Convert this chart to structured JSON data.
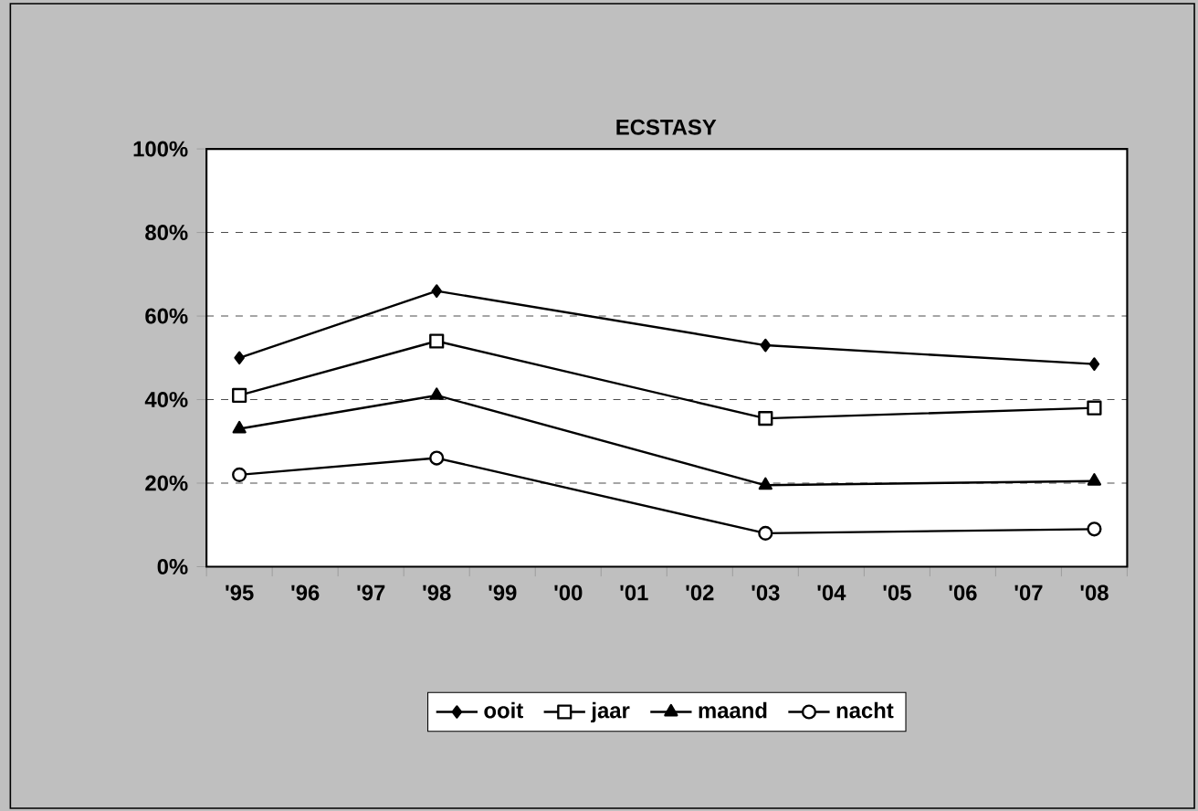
{
  "chart_data": {
    "type": "line",
    "title": "ECSTASY",
    "categories": [
      "'95",
      "'96",
      "'97",
      "'98",
      "'99",
      "'00",
      "'01",
      "'02",
      "'03",
      "'04",
      "'05",
      "'06",
      "'07",
      "'08"
    ],
    "series": [
      {
        "name": "ooit",
        "color": "#000000",
        "marker": "diamond",
        "values": [
          50,
          null,
          null,
          66,
          null,
          null,
          null,
          null,
          53,
          null,
          null,
          null,
          null,
          48.5
        ]
      },
      {
        "name": "jaar",
        "color": "#000000",
        "marker": "square",
        "values": [
          41,
          null,
          null,
          54,
          null,
          null,
          null,
          null,
          35.5,
          null,
          null,
          null,
          null,
          38
        ]
      },
      {
        "name": "maand",
        "color": "#000000",
        "marker": "triangle",
        "values": [
          33,
          null,
          null,
          41,
          null,
          null,
          null,
          null,
          19.5,
          null,
          null,
          null,
          null,
          20.5
        ]
      },
      {
        "name": "nacht",
        "color": "#000000",
        "marker": "circle",
        "values": [
          22,
          null,
          null,
          26,
          null,
          null,
          null,
          null,
          8,
          null,
          null,
          null,
          null,
          9
        ]
      }
    ],
    "ylim": [
      0,
      100
    ],
    "yticks": [
      {
        "value": 0,
        "label": "0%"
      },
      {
        "value": 20,
        "label": "20%"
      },
      {
        "value": 40,
        "label": "40%"
      },
      {
        "value": 60,
        "label": "60%"
      },
      {
        "value": 80,
        "label": "80%"
      },
      {
        "value": 100,
        "label": "100%"
      }
    ],
    "grid": "y",
    "legend": "bottom",
    "line_style": "solid"
  }
}
